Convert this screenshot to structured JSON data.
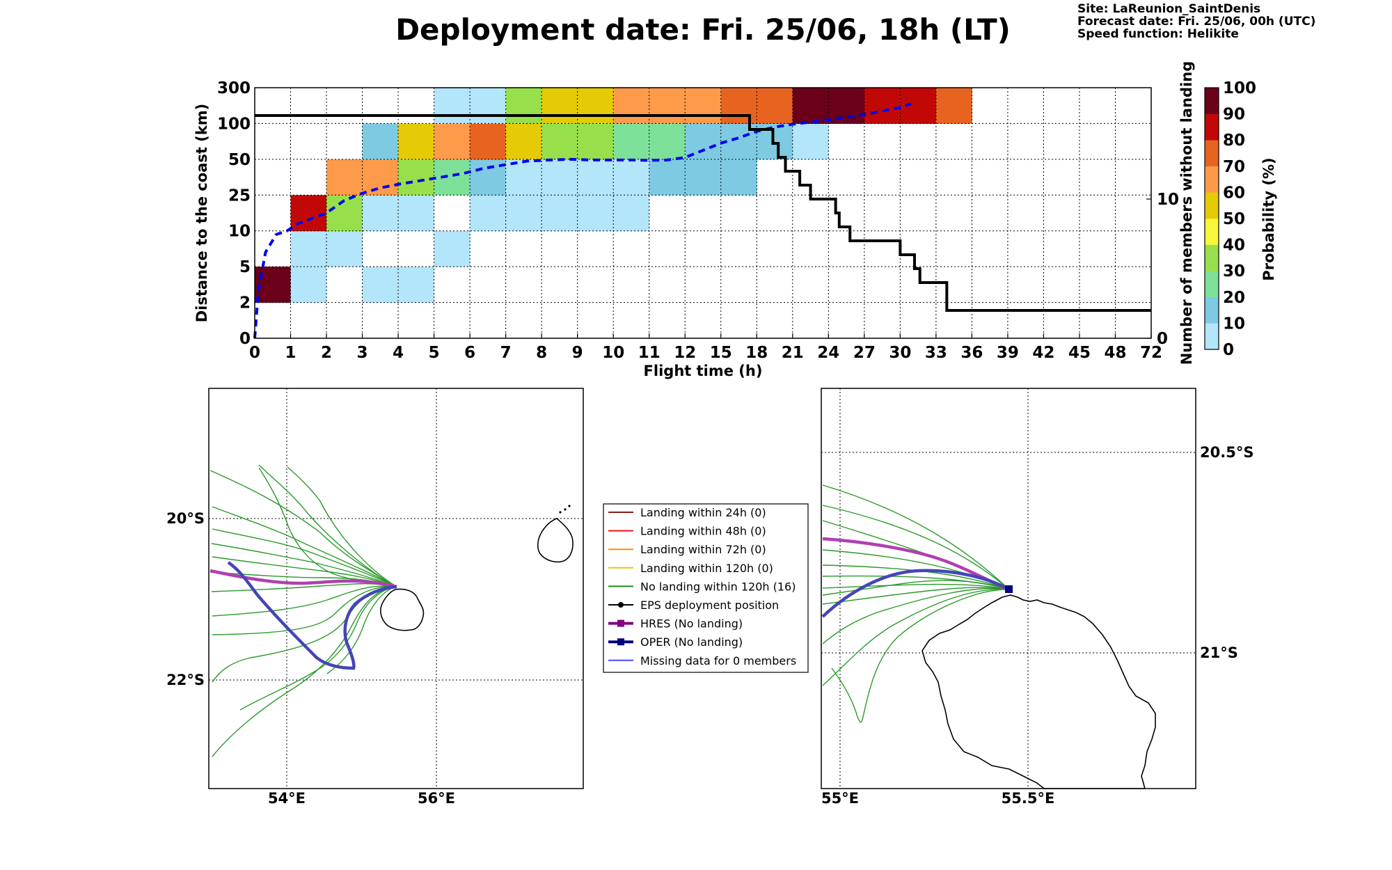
{
  "header": {
    "title": "Deployment date: Fri. 25/06, 18h (LT)",
    "site": "Site: LaReunion_SaintDenis",
    "forecast": "Forecast date: Fri. 25/06, 00h (UTC)",
    "speed": "Speed function: Helikite"
  },
  "chart_data": [
    {
      "type": "heatmap",
      "xlabel": "Flight time (h)",
      "ylabel": "Distance to the coast (km)",
      "y2label": "Number of members without landing",
      "x_ticks": [
        "0",
        "1",
        "2",
        "3",
        "4",
        "5",
        "6",
        "7",
        "8",
        "9",
        "10",
        "11",
        "12",
        "15",
        "18",
        "21",
        "24",
        "27",
        "30",
        "33",
        "36",
        "39",
        "42",
        "45",
        "48",
        "72"
      ],
      "y_ticks": [
        "0",
        "2",
        "5",
        "10",
        "25",
        "50",
        "100",
        "300"
      ],
      "y2_ticks": [
        "0",
        "10"
      ],
      "y2lim": [
        0,
        18
      ],
      "colorbar": {
        "label": "Probability (%)",
        "ticks": [
          "0",
          "10",
          "20",
          "30",
          "40",
          "50",
          "60",
          "70",
          "80",
          "90",
          "100"
        ],
        "colors": [
          "#b3e5fb",
          "#7ecae3",
          "#7ee19a",
          "#98e04b",
          "#f6f738",
          "#e5cb05",
          "#fd9b4b",
          "#e76420",
          "#c20807",
          "#6a0019"
        ]
      },
      "cells": [
        {
          "x": 0,
          "y": 1,
          "p": 95
        },
        {
          "x": 1,
          "y": 1,
          "p": 5
        },
        {
          "x": 1,
          "y": 2,
          "p": 5
        },
        {
          "x": 1,
          "y": 3,
          "p": 85
        },
        {
          "x": 2,
          "y": 2,
          "p": 5
        },
        {
          "x": 2,
          "y": 3,
          "p": 35
        },
        {
          "x": 2,
          "y": 4,
          "p": 65
        },
        {
          "x": 3,
          "y": 1,
          "p": 5
        },
        {
          "x": 3,
          "y": 3,
          "p": 5
        },
        {
          "x": 3,
          "y": 4,
          "p": 65
        },
        {
          "x": 3,
          "y": 5,
          "p": 15
        },
        {
          "x": 4,
          "y": 1,
          "p": 5
        },
        {
          "x": 4,
          "y": 3,
          "p": 5
        },
        {
          "x": 4,
          "y": 4,
          "p": 35
        },
        {
          "x": 4,
          "y": 5,
          "p": 55
        },
        {
          "x": 5,
          "y": 2,
          "p": 5
        },
        {
          "x": 5,
          "y": 4,
          "p": 25
        },
        {
          "x": 5,
          "y": 5,
          "p": 65
        },
        {
          "x": 5,
          "y": 6,
          "p": 5
        },
        {
          "x": 6,
          "y": 3,
          "p": 5
        },
        {
          "x": 6,
          "y": 4,
          "p": 15
        },
        {
          "x": 6,
          "y": 5,
          "p": 75
        },
        {
          "x": 6,
          "y": 6,
          "p": 5
        },
        {
          "x": 7,
          "y": 3,
          "p": 5
        },
        {
          "x": 7,
          "y": 4,
          "p": 5
        },
        {
          "x": 7,
          "y": 5,
          "p": 55
        },
        {
          "x": 7,
          "y": 6,
          "p": 35
        },
        {
          "x": 8,
          "y": 3,
          "p": 5
        },
        {
          "x": 8,
          "y": 4,
          "p": 5
        },
        {
          "x": 8,
          "y": 5,
          "p": 35
        },
        {
          "x": 8,
          "y": 6,
          "p": 55
        },
        {
          "x": 9,
          "y": 3,
          "p": 5
        },
        {
          "x": 9,
          "y": 4,
          "p": 5
        },
        {
          "x": 9,
          "y": 5,
          "p": 35
        },
        {
          "x": 9,
          "y": 6,
          "p": 55
        },
        {
          "x": 10,
          "y": 3,
          "p": 5
        },
        {
          "x": 10,
          "y": 4,
          "p": 5
        },
        {
          "x": 10,
          "y": 5,
          "p": 25
        },
        {
          "x": 10,
          "y": 6,
          "p": 65
        },
        {
          "x": 11,
          "y": 4,
          "p": 15
        },
        {
          "x": 11,
          "y": 5,
          "p": 25
        },
        {
          "x": 11,
          "y": 6,
          "p": 65
        },
        {
          "x": 12,
          "y": 4,
          "p": 15
        },
        {
          "x": 12,
          "y": 5,
          "p": 15
        },
        {
          "x": 12,
          "y": 6,
          "p": 65
        },
        {
          "x": 13,
          "y": 4,
          "p": 15
        },
        {
          "x": 13,
          "y": 5,
          "p": 15
        },
        {
          "x": 13,
          "y": 6,
          "p": 75
        },
        {
          "x": 14,
          "y": 5,
          "p": 15
        },
        {
          "x": 14,
          "y": 6,
          "p": 75
        },
        {
          "x": 15,
          "y": 5,
          "p": 5
        },
        {
          "x": 15,
          "y": 6,
          "p": 95
        },
        {
          "x": 16,
          "y": 6,
          "p": 95
        },
        {
          "x": 17,
          "y": 6,
          "p": 85
        },
        {
          "x": 18,
          "y": 6,
          "p": 85
        },
        {
          "x": 19,
          "y": 6,
          "p": 75
        }
      ],
      "members_without_landing": {
        "color": "#000000",
        "steps": [
          [
            0,
            16
          ],
          [
            13.8,
            16
          ],
          [
            13.8,
            15
          ],
          [
            14.45,
            15
          ],
          [
            14.45,
            14
          ],
          [
            14.6,
            14
          ],
          [
            14.6,
            13
          ],
          [
            14.8,
            13
          ],
          [
            14.8,
            12
          ],
          [
            15.2,
            12
          ],
          [
            15.2,
            11
          ],
          [
            15.5,
            11
          ],
          [
            15.5,
            10
          ],
          [
            16.2,
            10
          ],
          [
            16.2,
            9
          ],
          [
            16.3,
            9
          ],
          [
            16.3,
            8
          ],
          [
            16.6,
            8
          ],
          [
            16.6,
            7
          ],
          [
            18,
            7
          ],
          [
            18,
            6
          ],
          [
            18.4,
            6
          ],
          [
            18.4,
            5
          ],
          [
            18.55,
            5
          ],
          [
            18.55,
            4
          ],
          [
            19.3,
            4
          ],
          [
            19.3,
            2
          ],
          [
            25,
            2
          ]
        ]
      },
      "mean_distance": {
        "color": "#0000ee",
        "points": [
          [
            0,
            0
          ],
          [
            0.1,
            1.3
          ],
          [
            0.3,
            2.4
          ],
          [
            0.6,
            2.9
          ],
          [
            0.9,
            3.0
          ],
          [
            1.2,
            3.2
          ],
          [
            1.6,
            3.35
          ],
          [
            2.0,
            3.5
          ],
          [
            2.5,
            3.85
          ],
          [
            3.0,
            4.05
          ],
          [
            3.5,
            4.2
          ],
          [
            4.0,
            4.3
          ],
          [
            4.6,
            4.4
          ],
          [
            5.2,
            4.5
          ],
          [
            5.8,
            4.6
          ],
          [
            6.4,
            4.75
          ],
          [
            7.0,
            4.85
          ],
          [
            7.6,
            4.95
          ],
          [
            8.2,
            4.98
          ],
          [
            8.8,
            5.0
          ],
          [
            9.4,
            4.98
          ],
          [
            10,
            4.98
          ],
          [
            10.5,
            4.98
          ],
          [
            11,
            4.97
          ],
          [
            11.5,
            4.98
          ],
          [
            12,
            5.05
          ],
          [
            12.5,
            5.25
          ],
          [
            13,
            5.45
          ],
          [
            13.5,
            5.6
          ],
          [
            14,
            5.78
          ],
          [
            14.5,
            5.9
          ],
          [
            15,
            5.98
          ],
          [
            16,
            6.1
          ],
          [
            17,
            6.25
          ],
          [
            18,
            6.45
          ],
          [
            18.3,
            6.55
          ]
        ]
      }
    },
    {
      "type": "map",
      "lon_ticks": [
        "54°E",
        "56°E"
      ],
      "lat_ticks": [
        "20°S",
        "22°S"
      ],
      "colors": {
        "eps": "#2a9a2a",
        "hres": "#b040b0",
        "oper": "#4545b8",
        "coast": "#000000"
      }
    },
    {
      "type": "map",
      "lon_ticks": [
        "55°E",
        "55.5°E"
      ],
      "lat_ticks": [
        "20.5°S",
        "21°S"
      ],
      "colors": {
        "eps": "#2a9a2a",
        "hres": "#b040b0",
        "oper": "#4545b8",
        "coast": "#000000"
      }
    }
  ],
  "legend": {
    "items": [
      {
        "label": "Landing within 24h (0)",
        "color": "#8b1a1a",
        "marker": "none"
      },
      {
        "label": "Landing within 48h (0)",
        "color": "#ee1111",
        "marker": "none"
      },
      {
        "label": "Landing within 72h (0)",
        "color": "#ff8c00",
        "marker": "none"
      },
      {
        "label": "Landing within 120h (0)",
        "color": "#e8c800",
        "marker": "none"
      },
      {
        "label": "No landing within 120h (16)",
        "color": "#1e8a1e",
        "marker": "none"
      },
      {
        "label": "EPS deployment position",
        "color": "#000000",
        "marker": "circle"
      },
      {
        "label": "HRES (No landing)",
        "color": "#800080",
        "marker": "square"
      },
      {
        "label": "OPER (No landing)",
        "color": "#000080",
        "marker": "square"
      },
      {
        "label": "Missing data for 0 members",
        "color": "#4a4aff",
        "marker": "none"
      }
    ]
  }
}
